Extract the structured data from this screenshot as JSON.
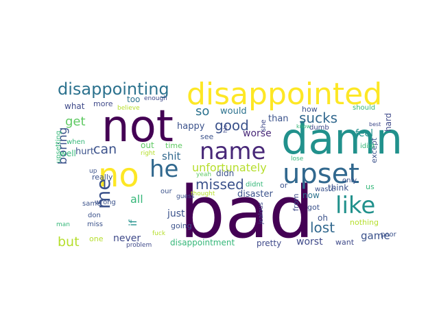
{
  "words": [
    {
      "text": "bad",
      "color": "#440154"
    },
    {
      "text": "not",
      "color": "#440154"
    },
    {
      "text": "damn",
      "color": "#21918c"
    },
    {
      "text": "disappointed",
      "color": "#fde725"
    },
    {
      "text": "no",
      "color": "#fde725"
    },
    {
      "text": "upset",
      "color": "#31688e"
    },
    {
      "text": "name",
      "color": "#482878"
    },
    {
      "text": "like",
      "color": "#21918c"
    },
    {
      "text": "he",
      "color": "#31688e"
    },
    {
      "text": "me",
      "color": "#3b528b"
    },
    {
      "text": "disappointing",
      "color": "#2c728e"
    },
    {
      "text": "good",
      "color": "#3b528b"
    },
    {
      "text": "sucks",
      "color": "#31688e"
    },
    {
      "text": "unfortunately",
      "color": "#b5de2b"
    },
    {
      "text": "missed",
      "color": "#3b528b"
    },
    {
      "text": "lost",
      "color": "#31688e"
    },
    {
      "text": "get",
      "color": "#5ec962"
    },
    {
      "text": "can",
      "color": "#3b528b"
    },
    {
      "text": "boring",
      "color": "#3b528b"
    },
    {
      "text": "but",
      "color": "#b5de2b"
    },
    {
      "text": "so",
      "color": "#2c728e"
    },
    {
      "text": "all",
      "color": "#35b779"
    },
    {
      "text": "shit",
      "color": "#31688e"
    },
    {
      "text": "if",
      "color": "#21918c"
    },
    {
      "text": "just",
      "color": "#3b528b"
    },
    {
      "text": "never",
      "color": "#3e4989"
    },
    {
      "text": "game",
      "color": "#3b528b"
    },
    {
      "text": "feel",
      "color": "#21918c"
    },
    {
      "text": "worst",
      "color": "#3e4989"
    },
    {
      "text": "worse",
      "color": "#482878"
    },
    {
      "text": "would",
      "color": "#2c728e"
    },
    {
      "text": "happy",
      "color": "#3b528b"
    },
    {
      "text": "hurt",
      "color": "#3b528b"
    },
    {
      "text": "didn",
      "color": "#3b528b"
    },
    {
      "text": "disaster",
      "color": "#3b528b"
    },
    {
      "text": "now",
      "color": "#2c728e"
    },
    {
      "text": "pretty",
      "color": "#3e4989"
    },
    {
      "text": "disappointment",
      "color": "#35b779"
    },
    {
      "text": "than",
      "color": "#3b528b"
    },
    {
      "text": "think",
      "color": "#3b528b"
    },
    {
      "text": "hard",
      "color": "#3e4989"
    },
    {
      "text": "what",
      "color": "#3e4989"
    },
    {
      "text": "too",
      "color": "#2c728e"
    },
    {
      "text": "more",
      "color": "#3e4989"
    },
    {
      "text": "how",
      "color": "#3b528b"
    },
    {
      "text": "out",
      "color": "#5ec962"
    },
    {
      "text": "time",
      "color": "#5ec962"
    },
    {
      "text": "really",
      "color": "#3b528b"
    },
    {
      "text": "well",
      "color": "#35b779"
    },
    {
      "text": "going",
      "color": "#3b528b"
    },
    {
      "text": "one",
      "color": "#b5de2b"
    },
    {
      "text": "see",
      "color": "#3b528b"
    },
    {
      "text": "she",
      "color": "#3e4989"
    },
    {
      "text": "except",
      "color": "#3b528b"
    },
    {
      "text": "nothing",
      "color": "#b5de2b"
    },
    {
      "text": "from",
      "color": "#3e4989"
    },
    {
      "text": "want",
      "color": "#3e4989"
    },
    {
      "text": "oh",
      "color": "#3b528b"
    },
    {
      "text": "got",
      "color": "#3b528b"
    },
    {
      "text": "or",
      "color": "#3b528b"
    },
    {
      "text": "same",
      "color": "#3b528b"
    },
    {
      "text": "miss",
      "color": "#3b528b"
    },
    {
      "text": "don",
      "color": "#3b528b"
    },
    {
      "text": "wrong",
      "color": "#3b528b"
    },
    {
      "text": "when",
      "color": "#35b779"
    },
    {
      "text": "upsetting",
      "color": "#35b779"
    },
    {
      "text": "our",
      "color": "#3b528b"
    },
    {
      "text": "didnt",
      "color": "#35b779"
    },
    {
      "text": "waste",
      "color": "#3b528b"
    },
    {
      "text": "us",
      "color": "#35b779"
    },
    {
      "text": "only",
      "color": "#3b528b"
    },
    {
      "text": "poor",
      "color": "#3b528b"
    },
    {
      "text": "should",
      "color": "#35b779"
    },
    {
      "text": "dumb",
      "color": "#3e4989"
    },
    {
      "text": "know",
      "color": "#35b779"
    },
    {
      "text": "idiot",
      "color": "#35b779"
    },
    {
      "text": "best",
      "color": "#3e4989"
    },
    {
      "text": "lose",
      "color": "#35b779"
    },
    {
      "text": "enough",
      "color": "#3e4989"
    },
    {
      "text": "believe",
      "color": "#b5de2b"
    },
    {
      "text": "right",
      "color": "#b5de2b"
    },
    {
      "text": "yeah",
      "color": "#5ec962"
    },
    {
      "text": "thought",
      "color": "#b5de2b"
    },
    {
      "text": "guess",
      "color": "#3b528b"
    },
    {
      "text": "fuck",
      "color": "#b5de2b"
    },
    {
      "text": "jealous",
      "color": "#3e4989"
    },
    {
      "text": "problem",
      "color": "#3e4989"
    },
    {
      "text": "man",
      "color": "#35b779"
    },
    {
      "text": "his",
      "color": "#3e4989"
    },
    {
      "text": "up",
      "color": "#3b528b"
    }
  ]
}
